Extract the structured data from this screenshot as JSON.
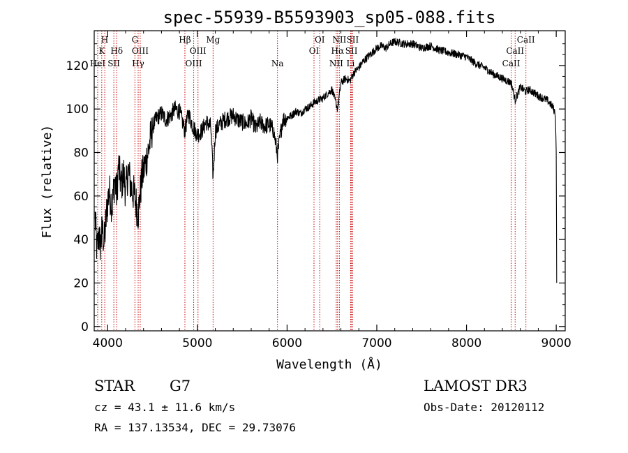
{
  "chart_data": {
    "type": "line",
    "title": "spec-55939-B5593903_sp05-088.fits",
    "xlabel": "Wavelength (Å)",
    "ylabel": "Flux (relative)",
    "xlim": [
      3850,
      9100
    ],
    "ylim": [
      -2,
      136
    ],
    "xticks": [
      4000,
      5000,
      6000,
      7000,
      8000,
      9000
    ],
    "yticks": [
      0,
      20,
      40,
      60,
      80,
      100,
      120
    ],
    "series": [
      {
        "name": "spectrum",
        "x": [
          3860,
          3880,
          3900,
          3920,
          3940,
          3960,
          3980,
          4000,
          4020,
          4050,
          4080,
          4101,
          4120,
          4150,
          4180,
          4200,
          4230,
          4260,
          4300,
          4340,
          4380,
          4420,
          4460,
          4500,
          4550,
          4600,
          4650,
          4700,
          4750,
          4800,
          4861,
          4900,
          4950,
          5000,
          5050,
          5100,
          5150,
          5175,
          5200,
          5250,
          5300,
          5350,
          5400,
          5450,
          5500,
          5550,
          5600,
          5650,
          5700,
          5750,
          5800,
          5850,
          5893,
          5950,
          6000,
          6050,
          6100,
          6150,
          6200,
          6250,
          6300,
          6350,
          6400,
          6450,
          6500,
          6563,
          6600,
          6650,
          6700,
          6750,
          6800,
          6850,
          6900,
          6950,
          7000,
          7050,
          7100,
          7150,
          7200,
          7300,
          7400,
          7500,
          7600,
          7700,
          7800,
          7900,
          8000,
          8100,
          8200,
          8300,
          8400,
          8500,
          8542,
          8600,
          8662,
          8700,
          8800,
          8900,
          8960,
          8990,
          9000,
          9005
        ],
        "y": [
          50,
          35,
          42,
          37,
          45,
          38,
          48,
          58,
          62,
          55,
          68,
          60,
          74,
          65,
          70,
          62,
          72,
          64,
          60,
          52,
          68,
          75,
          82,
          92,
          96,
          98,
          95,
          97,
          100,
          99,
          90,
          98,
          92,
          88,
          90,
          94,
          92,
          68,
          90,
          93,
          95,
          96,
          97,
          95,
          94,
          93,
          96,
          91,
          94,
          92,
          93,
          90,
          79,
          95,
          96,
          97,
          99,
          98,
          100,
          101,
          103,
          104,
          105,
          107,
          109,
          100,
          112,
          114,
          113,
          117,
          119,
          122,
          124,
          126,
          128,
          129,
          128,
          130,
          131,
          130,
          130,
          128,
          129,
          127,
          126,
          125,
          124,
          121,
          119,
          116,
          114,
          112,
          104,
          110,
          108,
          109,
          106,
          104,
          101,
          98,
          80,
          20
        ]
      }
    ],
    "lines": [
      {
        "name": "K",
        "wl": 3934,
        "label": "K",
        "row": 2
      },
      {
        "name": "H",
        "wl": 3968,
        "label": "H",
        "row": 1
      },
      {
        "name": "HeI",
        "wl": 3889,
        "label": "HeI",
        "row": 3
      },
      {
        "name": "SII-a",
        "wl": 4069,
        "label": "SII",
        "row": 3
      },
      {
        "name": "Hdelta",
        "wl": 4101,
        "label": "Hδ",
        "row": 2
      },
      {
        "name": "G",
        "wl": 4304,
        "label": "G",
        "row": 1
      },
      {
        "name": "OIII-a",
        "wl": 4363,
        "label": "OIII",
        "row": 2
      },
      {
        "name": "Hgamma",
        "wl": 4340,
        "label": "Hγ",
        "row": 3
      },
      {
        "name": "Hbeta",
        "wl": 4861,
        "label": "Hβ",
        "row": 1
      },
      {
        "name": "OIII-b",
        "wl": 4959,
        "label": "OIII",
        "row": 3
      },
      {
        "name": "OIII-c",
        "wl": 5007,
        "label": "OIII",
        "row": 2
      },
      {
        "name": "Mg",
        "wl": 5175,
        "label": "Mg",
        "row": 1
      },
      {
        "name": "Na",
        "wl": 5893,
        "label": "Na",
        "row": 3
      },
      {
        "name": "OI-a",
        "wl": 6300,
        "label": "OI",
        "row": 2
      },
      {
        "name": "OI-b",
        "wl": 6364,
        "label": "OI",
        "row": 1
      },
      {
        "name": "NII-a",
        "wl": 6548,
        "label": "NII",
        "row": 3
      },
      {
        "name": "NII-b",
        "wl": 6583,
        "label": "NII",
        "row": 1
      },
      {
        "name": "Halpha",
        "wl": 6563,
        "label": "Hα",
        "row": 2
      },
      {
        "name": "SII-b",
        "wl": 6717,
        "label": "SII",
        "row": 2
      },
      {
        "name": "SII-c",
        "wl": 6731,
        "label": "SII",
        "row": 1
      },
      {
        "name": "Li",
        "wl": 6708,
        "label": "Li",
        "row": 3
      },
      {
        "name": "CaII-a",
        "wl": 8498,
        "label": "CaII",
        "row": 3
      },
      {
        "name": "CaII-b",
        "wl": 8542,
        "label": "CaII",
        "row": 2
      },
      {
        "name": "CaII-c",
        "wl": 8662,
        "label": "CaII",
        "row": 1
      }
    ],
    "line_color": "#cc0000"
  },
  "info": {
    "obj_class": "STAR",
    "subclass": "G7",
    "survey": "LAMOST DR3",
    "cz": "cz = 43.1 ± 11.6 km/s",
    "obs_date": "Obs-Date: 20120112",
    "radec": "RA = 137.13534, DEC =  29.73076"
  }
}
